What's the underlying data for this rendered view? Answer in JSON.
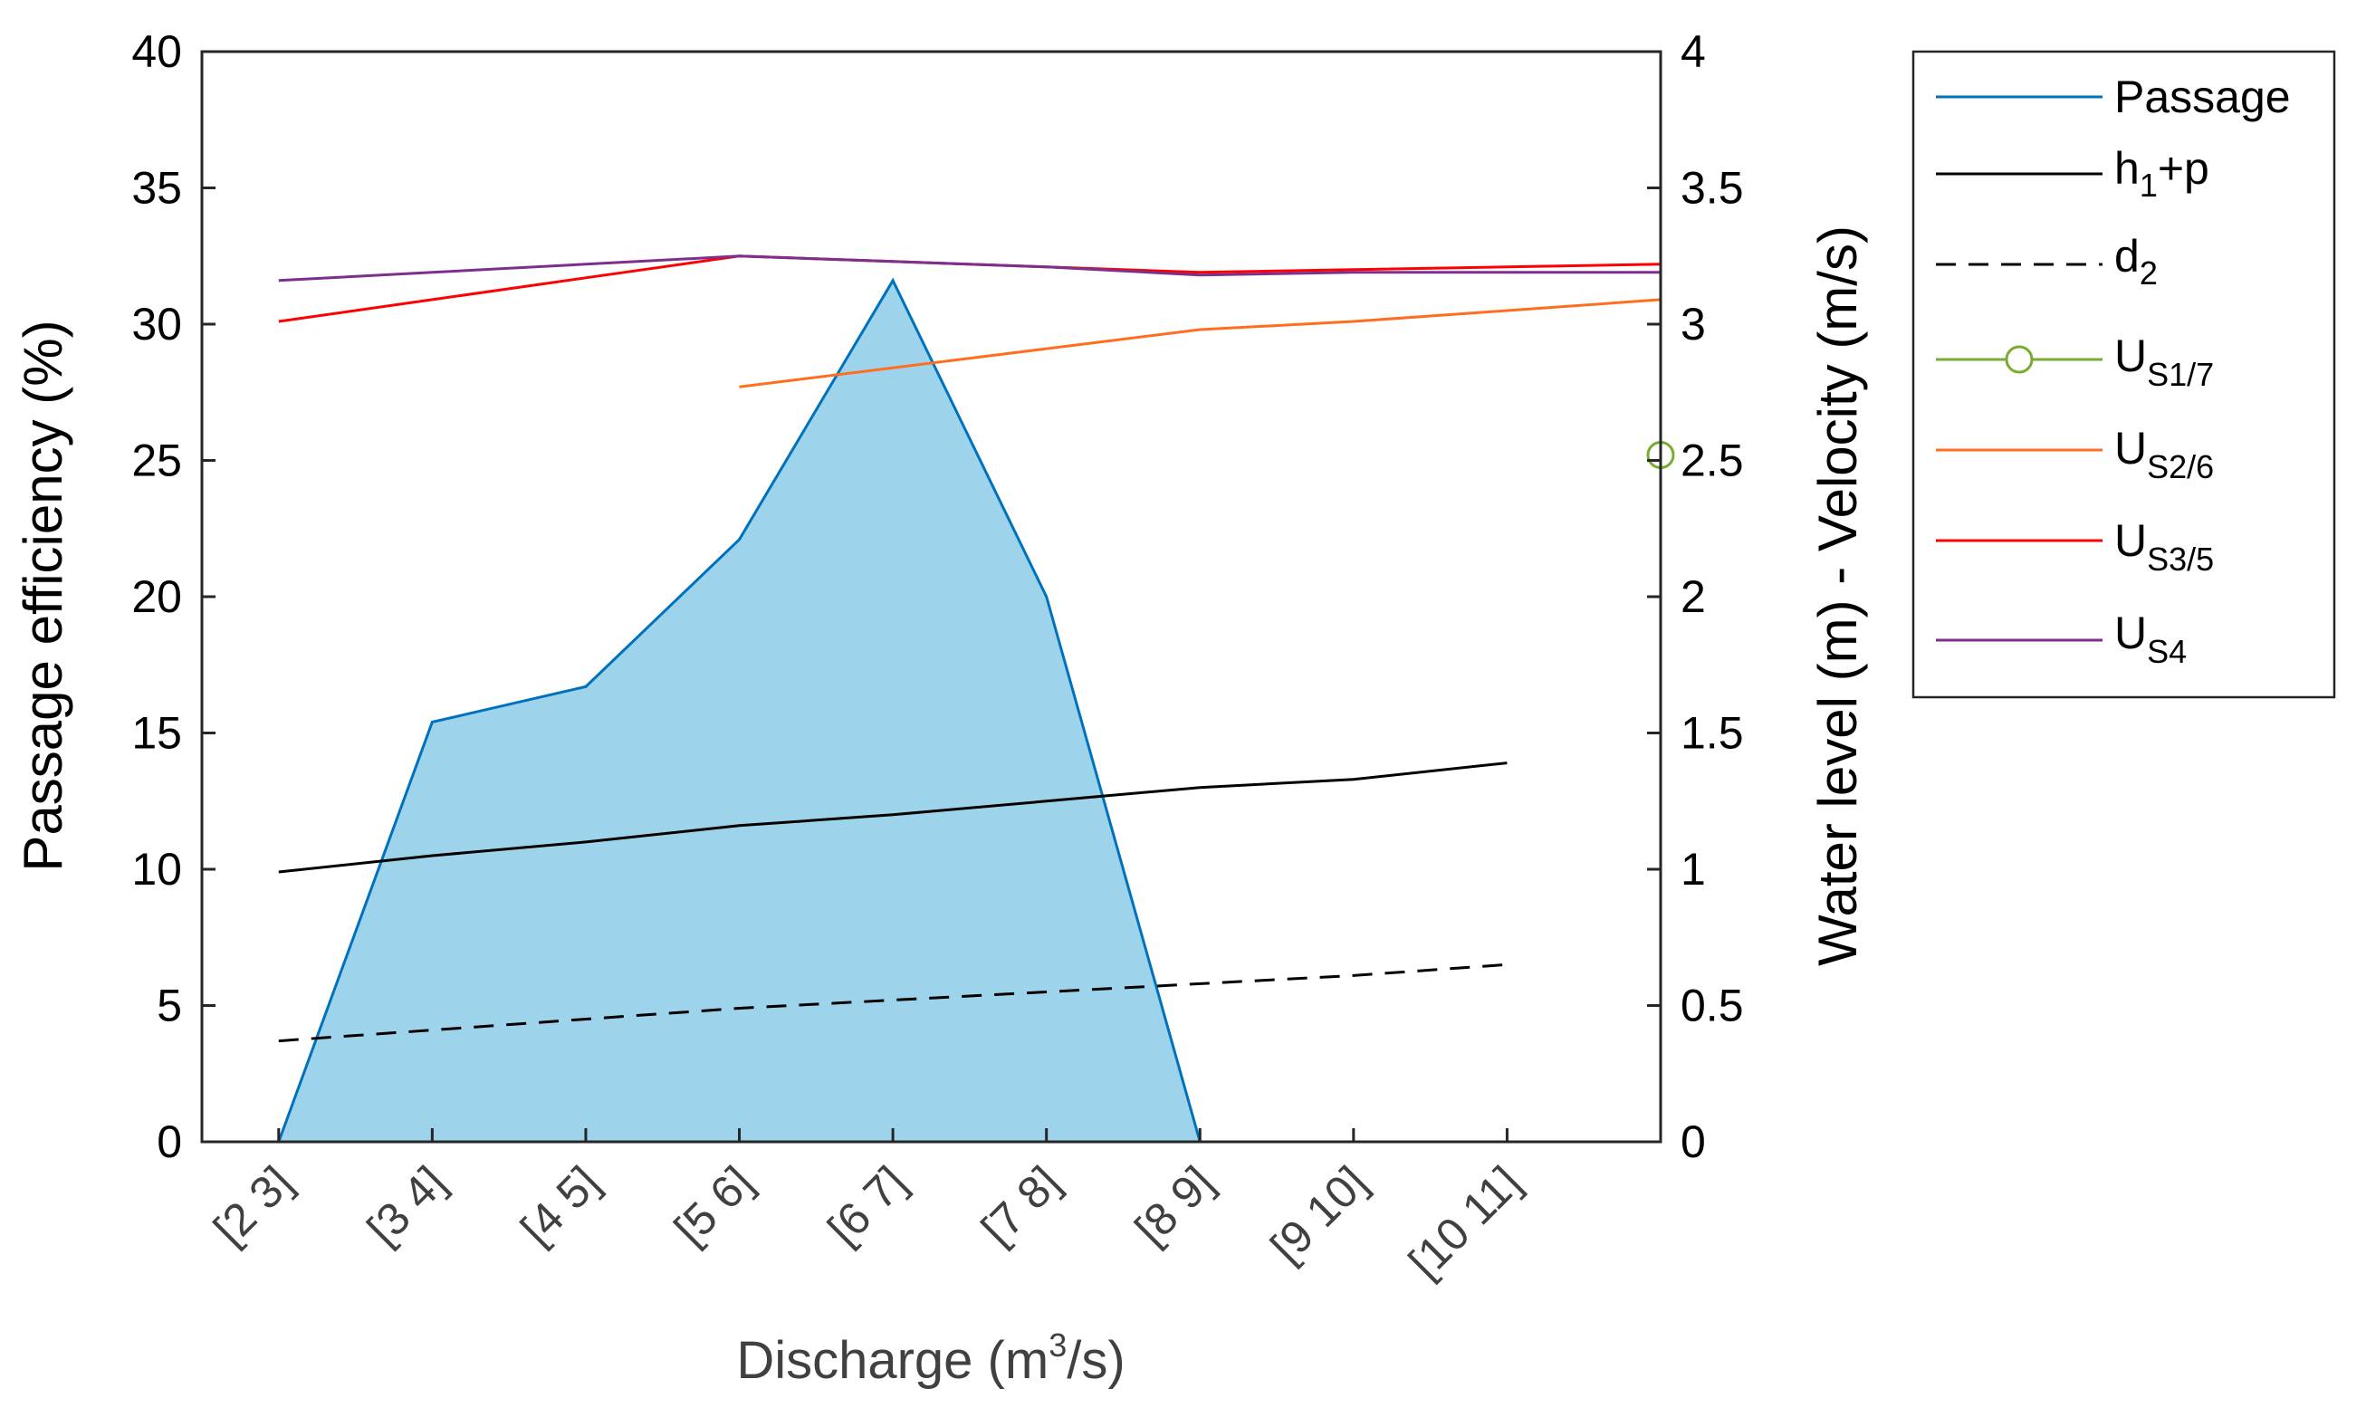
{
  "chart_data": {
    "type": "area",
    "xlabel": "Discharge (m³/s)",
    "xlabel_parts": {
      "pre": "Discharge (m",
      "sup": "3",
      "post": "/s)"
    },
    "ylabel_left": "Passage efficiency (%)",
    "ylabel_right": "Water level (m) - Velocity (m/s)",
    "categories": [
      "[2 3]",
      "[3 4]",
      "[4 5]",
      "[5 6]",
      "[6 7]",
      "[7 8]",
      "[8 9]",
      "[9 10]",
      "[10 11]"
    ],
    "x_range": [
      0.5,
      10.0
    ],
    "ylim_left": [
      0,
      40
    ],
    "ylim_right": [
      0,
      4
    ],
    "yticks_left": [
      "0",
      "5",
      "10",
      "15",
      "20",
      "25",
      "30",
      "35",
      "40"
    ],
    "yticks_right": [
      "0",
      "0.5",
      "1",
      "1.5",
      "2",
      "2.5",
      "3",
      "3.5",
      "4"
    ],
    "grid": false,
    "legend_position": "outside right, top",
    "series": [
      {
        "key": "passage",
        "name": "Passage",
        "axis": "left",
        "style": "area",
        "color": "#0072BD",
        "fill": "#9ED3EC",
        "x": [
          1,
          2,
          3,
          4,
          5,
          6,
          7,
          8,
          9
        ],
        "values": [
          0,
          15.4,
          16.7,
          22.1,
          31.6,
          20.0,
          0,
          0,
          0
        ]
      },
      {
        "key": "h1p",
        "name": "h1+p",
        "name_main": "h",
        "name_sub": "1",
        "name_post": "+p",
        "axis": "right",
        "style": "solid",
        "color": "#000000",
        "x": [
          1,
          2,
          3,
          4,
          5,
          6,
          7,
          8,
          9
        ],
        "values": [
          0.99,
          1.05,
          1.1,
          1.16,
          1.2,
          1.25,
          1.3,
          1.33,
          1.39
        ]
      },
      {
        "key": "d2",
        "name": "d2",
        "name_main": "d",
        "name_sub": "2",
        "axis": "right",
        "style": "dashed",
        "color": "#000000",
        "x": [
          1,
          2,
          3,
          4,
          5,
          6,
          7,
          8,
          9
        ],
        "values": [
          0.37,
          0.41,
          0.45,
          0.49,
          0.52,
          0.55,
          0.58,
          0.61,
          0.65
        ]
      },
      {
        "key": "us17",
        "name": "US1/7",
        "name_main": "U",
        "name_sub": "S1/7",
        "axis": "right",
        "style": "marker",
        "color": "#77AC30",
        "x": [
          10.0
        ],
        "values": [
          2.52
        ]
      },
      {
        "key": "us26",
        "name": "US2/6",
        "name_main": "U",
        "name_sub": "S2/6",
        "axis": "right",
        "style": "solid",
        "color": "#FF6E1F",
        "x": [
          4,
          5,
          6,
          7,
          8,
          9,
          10
        ],
        "values": [
          2.77,
          2.84,
          2.91,
          2.98,
          3.01,
          3.05,
          3.09
        ]
      },
      {
        "key": "us35",
        "name": "US3/5",
        "name_main": "U",
        "name_sub": "S3/5",
        "axis": "right",
        "style": "solid",
        "color": "#FF0000",
        "x": [
          1,
          2,
          3,
          4,
          5,
          6,
          7,
          8,
          9,
          10
        ],
        "values": [
          3.01,
          3.09,
          3.17,
          3.25,
          3.23,
          3.21,
          3.19,
          3.2,
          3.21,
          3.22
        ]
      },
      {
        "key": "us4",
        "name": "US4",
        "name_main": "U",
        "name_sub": "S4",
        "axis": "right",
        "style": "solid",
        "color": "#7E2F8E",
        "x": [
          1,
          2,
          3,
          4,
          5,
          6,
          7,
          8,
          9,
          10
        ],
        "values": [
          3.16,
          3.19,
          3.22,
          3.25,
          3.23,
          3.21,
          3.18,
          3.19,
          3.19,
          3.19
        ]
      }
    ]
  }
}
